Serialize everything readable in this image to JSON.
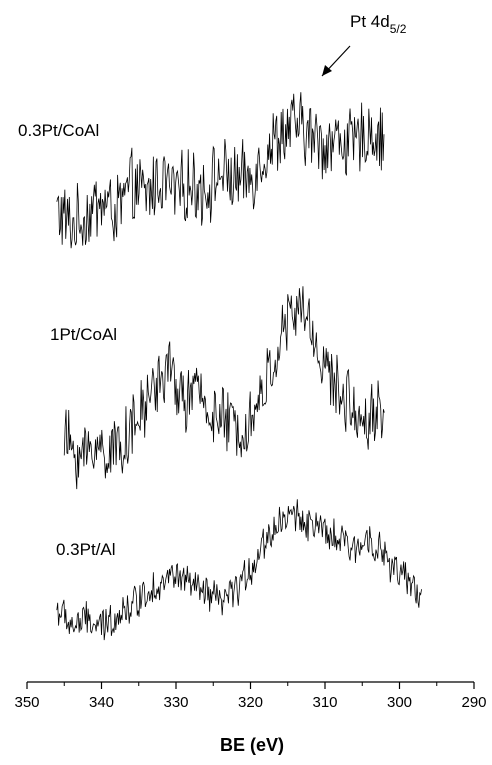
{
  "chart_data": {
    "type": "line",
    "xlabel": "BE (eV)",
    "ylabel": "",
    "xlim": [
      350,
      290
    ],
    "x_reversed": true,
    "x_ticks": [
      350,
      340,
      330,
      320,
      310,
      300,
      290
    ],
    "y_ticks_shown": false,
    "grid": false,
    "annotation": {
      "text_main": "Pt 4d",
      "text_sub": "5/2",
      "arrow_target_x": 313
    },
    "series": [
      {
        "name": "0.3Pt/CoAl",
        "x": [
          346,
          344,
          342,
          340,
          338,
          336,
          334,
          332,
          330,
          328,
          326,
          324,
          322,
          320,
          318,
          316,
          314,
          312,
          310,
          308,
          306,
          304,
          302
        ],
        "y": [
          1.8,
          1.2,
          1.6,
          2.1,
          1.7,
          2.6,
          2.3,
          2.9,
          2.4,
          2.7,
          2.5,
          3.1,
          2.8,
          2.9,
          3.8,
          4.4,
          4.8,
          4.4,
          4.1,
          4.3,
          4.0,
          4.6,
          4.1
        ],
        "noise": 1.1
      },
      {
        "name": "1Pt/CoAl",
        "x": [
          345,
          343,
          341,
          339,
          337,
          335,
          333,
          331,
          329,
          327,
          325,
          323,
          321,
          319,
          317,
          315,
          313,
          311,
          309,
          307,
          305,
          303,
          302
        ],
        "y": [
          -6.2,
          -6.9,
          -6.5,
          -6.7,
          -6.3,
          -5.6,
          -4.4,
          -3.8,
          -4.9,
          -4.6,
          -5.4,
          -5.7,
          -5.9,
          -5.1,
          -3.6,
          -2.1,
          -1.6,
          -3.1,
          -4.3,
          -4.9,
          -5.6,
          -5.2,
          -5.4
        ],
        "noise": 1.0
      },
      {
        "name": "0.3Pt/Al",
        "x": [
          346,
          344,
          342,
          340,
          338,
          336,
          334,
          332,
          330,
          328,
          326,
          324,
          322,
          320,
          318,
          316,
          314,
          312,
          310,
          308,
          306,
          304,
          302,
          300,
          298,
          297
        ],
        "y": [
          -12.2,
          -12.8,
          -12.6,
          -12.9,
          -12.4,
          -12.1,
          -11.6,
          -11.3,
          -11.0,
          -11.4,
          -11.7,
          -12.0,
          -11.6,
          -10.8,
          -9.8,
          -9.1,
          -8.9,
          -9.2,
          -9.6,
          -9.8,
          -10.2,
          -9.6,
          -10.4,
          -11.0,
          -11.5,
          -11.7
        ],
        "noise": 0.55
      }
    ]
  }
}
